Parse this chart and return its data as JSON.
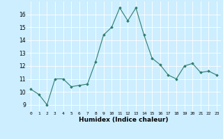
{
  "x": [
    0,
    1,
    2,
    3,
    4,
    5,
    6,
    7,
    8,
    9,
    10,
    11,
    12,
    13,
    14,
    15,
    16,
    17,
    18,
    19,
    20,
    21,
    22,
    23
  ],
  "y": [
    10.2,
    9.8,
    9.0,
    11.0,
    11.0,
    10.4,
    10.5,
    10.6,
    12.3,
    14.4,
    15.0,
    16.5,
    15.5,
    16.5,
    14.4,
    12.6,
    12.1,
    11.3,
    11.0,
    12.0,
    12.2,
    11.5,
    11.6,
    11.3
  ],
  "xlabel": "Humidex (Indice chaleur)",
  "xlim": [
    -0.5,
    23.5
  ],
  "ylim": [
    8.5,
    17.0
  ],
  "yticks": [
    9,
    10,
    11,
    12,
    13,
    14,
    15,
    16
  ],
  "xticks": [
    0,
    1,
    2,
    3,
    4,
    5,
    6,
    7,
    8,
    9,
    10,
    11,
    12,
    13,
    14,
    15,
    16,
    17,
    18,
    19,
    20,
    21,
    22,
    23
  ],
  "line_color": "#2e7d6e",
  "marker_color": "#2e7d6e",
  "bg_color": "#cceeff",
  "grid_color": "#ffffff",
  "fig_bg": "#cceeff"
}
